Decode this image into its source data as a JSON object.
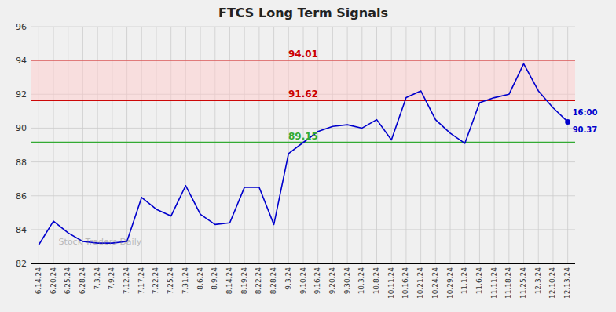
{
  "chart_data": {
    "type": "line",
    "title": "FTCS Long Term Signals",
    "categories": [
      "6.14.24",
      "6.20.24",
      "6.25.24",
      "6.28.24",
      "7.3.24",
      "7.9.24",
      "7.12.24",
      "7.17.24",
      "7.22.24",
      "7.25.24",
      "7.31.24",
      "8.6.24",
      "8.9.24",
      "8.14.24",
      "8.19.24",
      "8.22.24",
      "8.28.24",
      "9.3.24",
      "9.10.24",
      "9.16.24",
      "9.20.24",
      "9.30.24",
      "10.3.24",
      "10.8.24",
      "10.11.24",
      "10.16.24",
      "10.21.24",
      "10.24.24",
      "10.29.24",
      "11.1.24",
      "11.6.24",
      "11.11.24",
      "11.18.24",
      "11.25.24",
      "12.3.24",
      "12.10.24",
      "12.13.24"
    ],
    "values": [
      83.1,
      84.5,
      83.8,
      83.3,
      83.2,
      83.2,
      83.3,
      85.9,
      85.2,
      84.8,
      86.6,
      84.9,
      84.3,
      84.4,
      86.5,
      86.5,
      84.3,
      88.5,
      89.15,
      89.8,
      90.1,
      90.2,
      90.0,
      90.5,
      89.3,
      91.8,
      92.2,
      90.5,
      89.7,
      89.1,
      91.5,
      91.8,
      92.0,
      93.8,
      92.2,
      91.2,
      90.37
    ],
    "color": "#0000cc",
    "ylim": [
      82,
      96
    ],
    "yticks": [
      82,
      84,
      86,
      88,
      90,
      92,
      94,
      96
    ],
    "grid": true,
    "grid_color": "#cccccc",
    "background_color": "#f0f0f0",
    "reference_lines": [
      {
        "value": 89.15,
        "label": "89.15",
        "color": "#33aa33"
      },
      {
        "value": 91.62,
        "label": "91.62",
        "color": "#cc0000"
      },
      {
        "value": 94.01,
        "label": "94.01",
        "color": "#cc0000"
      }
    ],
    "band": {
      "values": [
        91.62,
        94.01
      ],
      "color": "#ffcccc"
    },
    "annotations": [
      {
        "text": "16:00"
      },
      {
        "text": "90.37"
      }
    ],
    "watermark": "Stock Traders Daily"
  }
}
